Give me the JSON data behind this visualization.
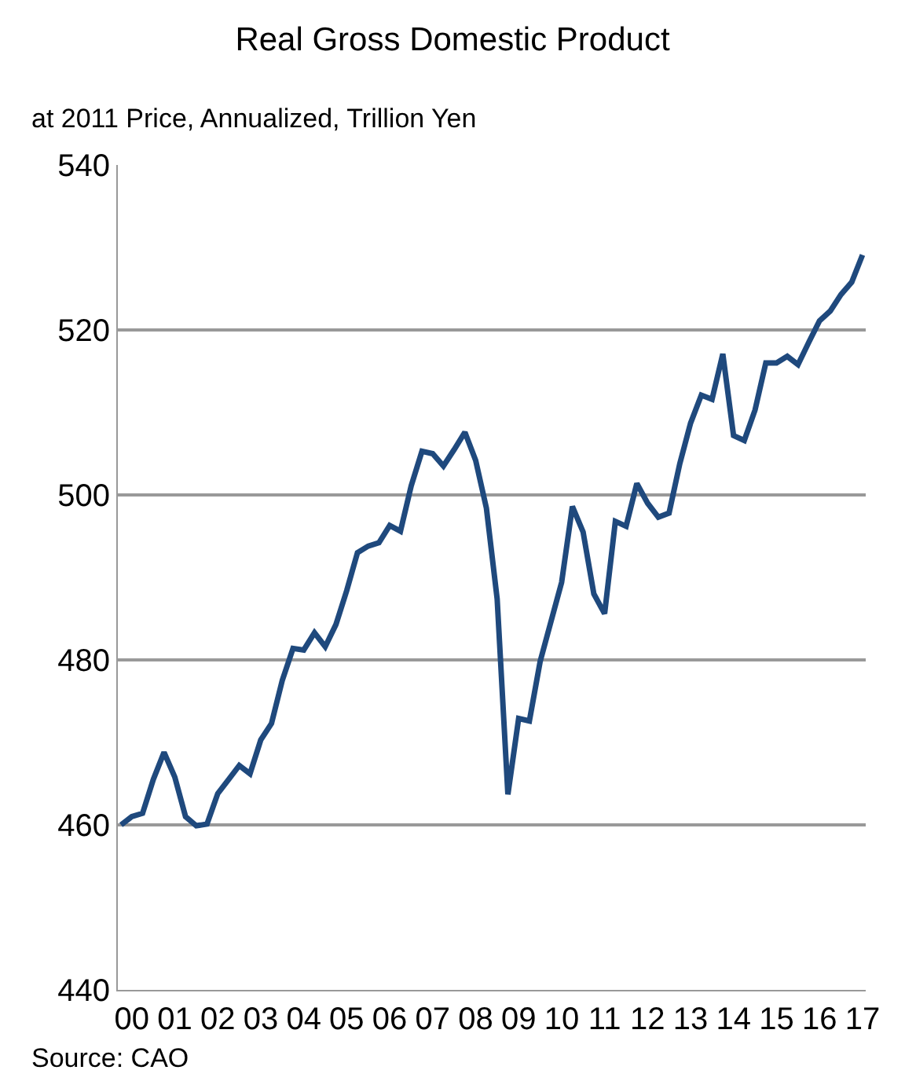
{
  "chart_data": {
    "type": "line",
    "title": "Real Gross Domestic Product",
    "subtitle": "at 2011 Price, Annualized, Trillion Yen",
    "categories": [
      null,
      "00",
      null,
      null,
      null,
      "01",
      null,
      null,
      null,
      "02",
      null,
      null,
      null,
      "03",
      null,
      null,
      null,
      "04",
      null,
      null,
      null,
      "05",
      null,
      null,
      null,
      "06",
      null,
      null,
      null,
      "07",
      null,
      null,
      null,
      "08",
      null,
      null,
      null,
      "09",
      null,
      null,
      null,
      "10",
      null,
      null,
      null,
      "11",
      null,
      null,
      null,
      "12",
      null,
      null,
      null,
      "13",
      null,
      null,
      null,
      "14",
      null,
      null,
      null,
      "15",
      null,
      null,
      null,
      "16",
      null,
      null,
      null,
      "17"
    ],
    "series": [
      {
        "color": "#1f497d",
        "values": [
          460.0,
          461.0,
          461.4,
          465.5,
          468.8,
          465.8,
          461.0,
          459.9,
          460.1,
          463.8,
          465.5,
          467.2,
          466.2,
          470.3,
          472.3,
          477.5,
          481.4,
          481.2,
          483.3,
          481.6,
          484.3,
          488.4,
          493.0,
          493.8,
          494.2,
          496.3,
          495.6,
          501.1,
          505.3,
          505.0,
          503.5,
          505.5,
          507.6,
          504.2,
          498.4,
          487.4,
          463.7,
          472.9,
          472.6,
          479.8,
          484.6,
          489.4,
          498.6,
          495.5,
          488.0,
          485.6,
          496.8,
          496.2,
          501.4,
          499.0,
          497.3,
          497.8,
          503.8,
          508.7,
          512.1,
          511.6,
          517.1,
          507.2,
          506.6,
          510.3,
          516.0,
          516.0,
          516.8,
          515.8,
          518.5,
          521.1,
          522.3,
          524.3,
          525.8,
          529.1
        ]
      }
    ],
    "ylim": [
      440,
      540
    ],
    "yticks": [
      440,
      460,
      480,
      500,
      520,
      540
    ],
    "grid": "y",
    "legend": false,
    "marker": "none",
    "line_style": "solid",
    "annotations": [
      "Source: CAO"
    ]
  }
}
